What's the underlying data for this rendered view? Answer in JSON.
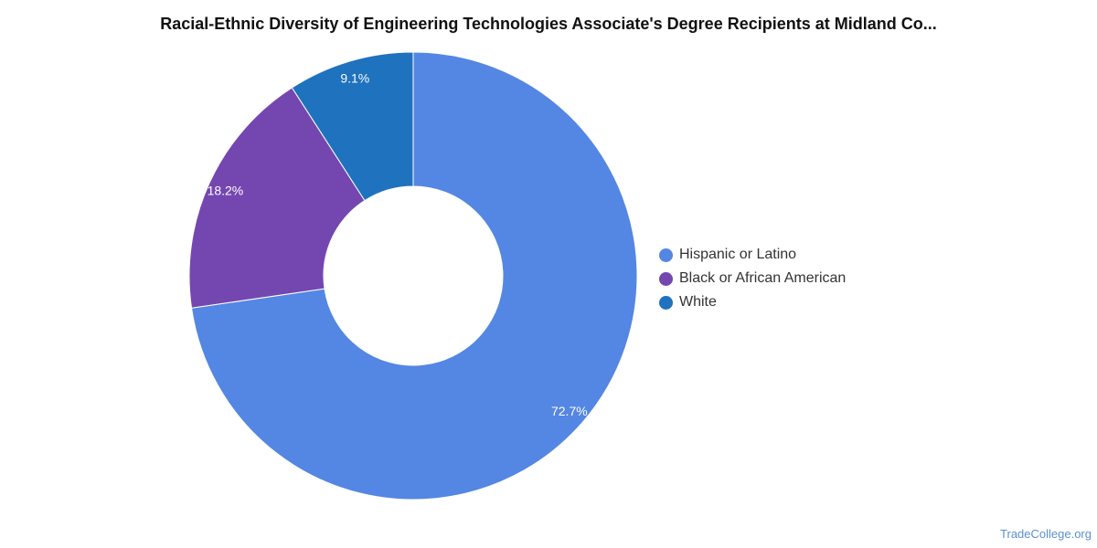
{
  "chart_data": {
    "type": "pie",
    "title": "Racial-Ethnic Diversity of Engineering Technologies Associate's Degree Recipients at Midland Co...",
    "categories": [
      "Hispanic or Latino",
      "Black or African American",
      "White"
    ],
    "values": [
      72.7,
      18.2,
      9.1
    ],
    "value_labels": [
      "72.7%",
      "18.2%",
      "9.1%"
    ],
    "colors": [
      "#5486e3",
      "#7447b0",
      "#1f72be"
    ],
    "donut": true,
    "legend_position": "right"
  },
  "legend": {
    "items": [
      {
        "label": "Hispanic or Latino",
        "color": "#5486e3"
      },
      {
        "label": "Black or African American",
        "color": "#7447b0"
      },
      {
        "label": "White",
        "color": "#1f72be"
      }
    ]
  },
  "footer": {
    "source": "TradeCollege.org"
  }
}
